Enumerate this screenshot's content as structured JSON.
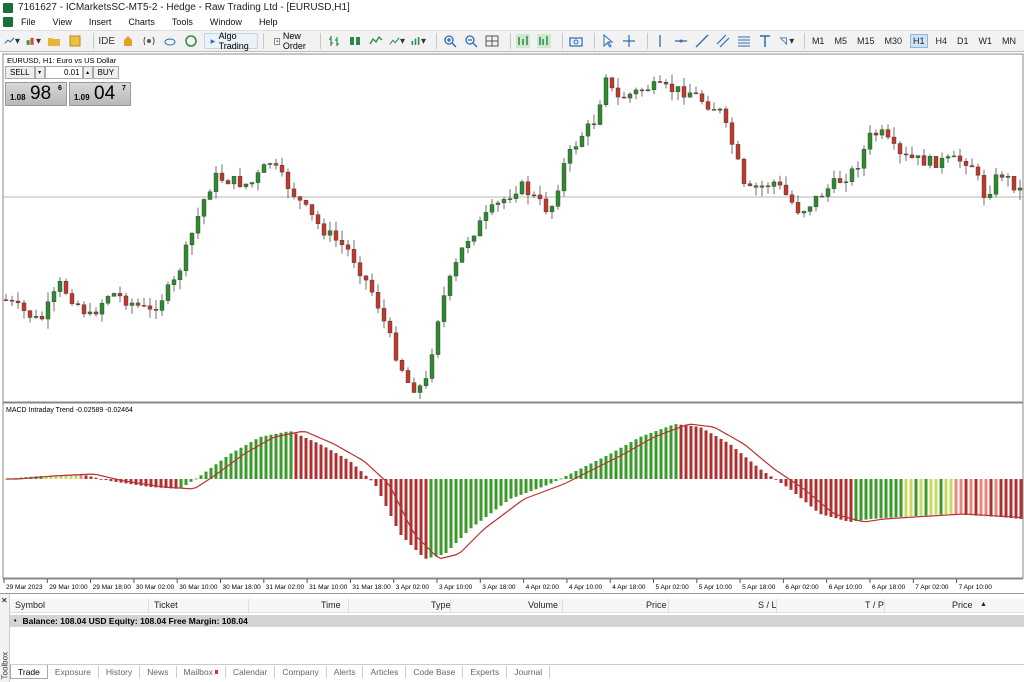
{
  "window": {
    "title": "7161627 - ICMarketsSC-MT5-2 - Hedge - Raw Trading Ltd - [EURUSD,H1]"
  },
  "menu": [
    "File",
    "View",
    "Insert",
    "Charts",
    "Tools",
    "Window",
    "Help"
  ],
  "toolbar": {
    "ide_label": "IDE",
    "algo_label": "Algo Trading",
    "new_order_label": "New Order",
    "timeframes": [
      "M1",
      "M5",
      "M15",
      "M30",
      "H1",
      "H4",
      "D1",
      "W1",
      "MN"
    ],
    "active_timeframe": "H1"
  },
  "chart": {
    "symbol_label": "EURUSD, H1:  Euro vs US Dollar",
    "indicator_label": "MACD Intraday Trend  -0.02589  -0.02464",
    "bull_color": "#2e8b2e",
    "bear_color": "#c0392b",
    "time_labels": [
      "29 Mar 2023",
      "29 Mar 10:00",
      "29 Mar 18:00",
      "30 Mar 02:00",
      "30 Mar 10:00",
      "30 Mar 18:00",
      "31 Mar 02:00",
      "31 Mar 10:00",
      "31 Mar 18:00",
      "3 Apr 02:00",
      "3 Apr 10:00",
      "3 Apr 18:00",
      "4 Apr 02:00",
      "4 Apr 10:00",
      "4 Apr 18:00",
      "5 Apr 02:00",
      "5 Apr 10:00",
      "5 Apr 18:00",
      "6 Apr 02:00",
      "6 Apr 10:00",
      "6 Apr 18:00",
      "7 Apr 02:00",
      "7 Apr 10:00"
    ]
  },
  "oneclick": {
    "sell_label": "SELL",
    "buy_label": "BUY",
    "volume": "0.01",
    "sell_small": "1.08",
    "sell_big": "98",
    "sell_sup": "6",
    "buy_small": "1.09",
    "buy_big": "04",
    "buy_sup": "7"
  },
  "toolbox": {
    "side_label": "Toolbox",
    "columns": [
      "Symbol",
      "Ticket",
      "Time",
      "Type",
      "Volume",
      "Price",
      "S / L",
      "T / P",
      "Price"
    ],
    "balance_text": "Balance: 108.04 USD  Equity: 108.04  Free Margin: 108.04",
    "tabs": [
      "Trade",
      "Exposure",
      "History",
      "News",
      "Mailbox",
      "Calendar",
      "Company",
      "Alerts",
      "Articles",
      "Code Base",
      "Experts",
      "Journal"
    ],
    "active_tab": "Trade"
  }
}
